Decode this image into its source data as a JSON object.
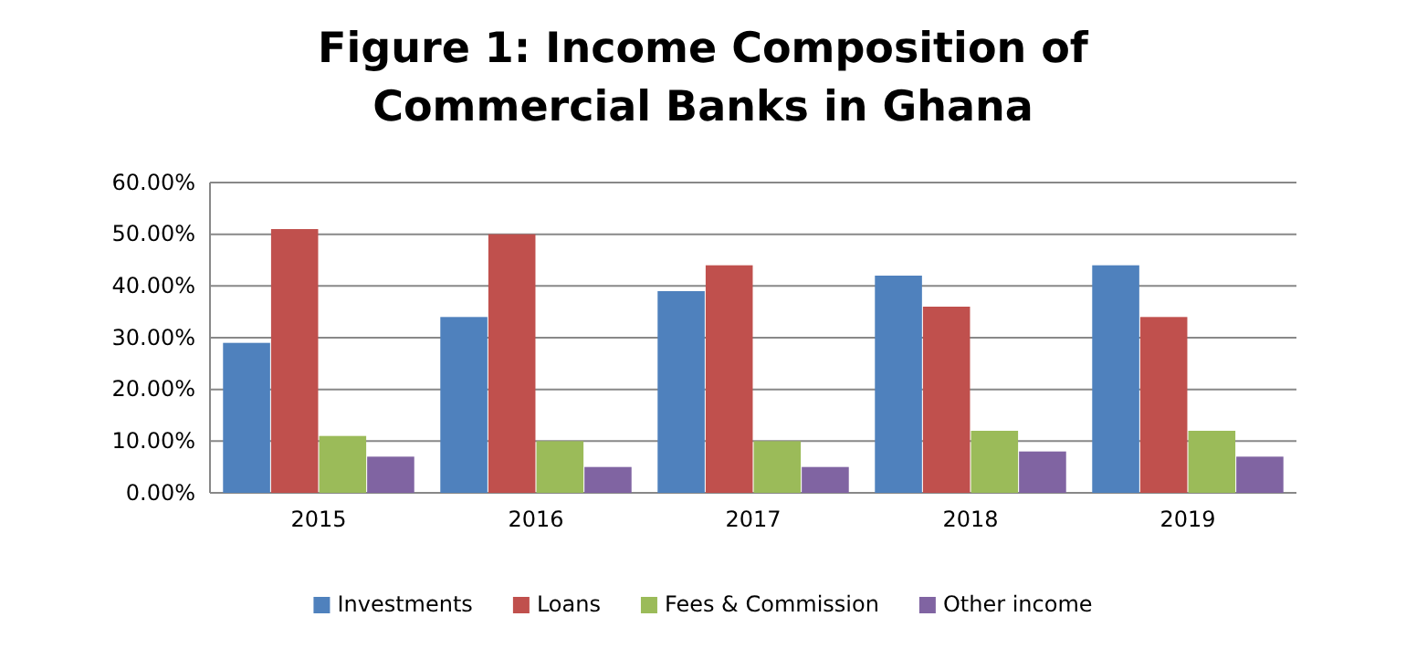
{
  "chart_data": {
    "type": "bar",
    "title": "Figure 1: Income Composition of Commercial Banks in Ghana",
    "categories": [
      "2015",
      "2016",
      "2017",
      "2018",
      "2019"
    ],
    "series": [
      {
        "name": "Investments",
        "color": "#4f81bd",
        "values": [
          29,
          34,
          39,
          42,
          44
        ]
      },
      {
        "name": "Loans",
        "color": "#c0504d",
        "values": [
          51,
          50,
          44,
          36,
          34
        ]
      },
      {
        "name": "Fees & Commission",
        "color": "#9bbb59",
        "values": [
          11,
          10,
          10,
          12,
          12
        ]
      },
      {
        "name": "Other income",
        "color": "#8064a2",
        "values": [
          7,
          5,
          5,
          8,
          7
        ]
      }
    ],
    "ylim": [
      0,
      60
    ],
    "yticks": [
      {
        "value": 0,
        "label": "0.00%"
      },
      {
        "value": 10,
        "label": "10.00%"
      },
      {
        "value": 20,
        "label": "20.00%"
      },
      {
        "value": 30,
        "label": "30.00%"
      },
      {
        "value": 40,
        "label": "40.00%"
      },
      {
        "value": 50,
        "label": "50.00%"
      },
      {
        "value": 60,
        "label": "60.00%"
      }
    ],
    "grid": "y",
    "legend": "bottom"
  }
}
